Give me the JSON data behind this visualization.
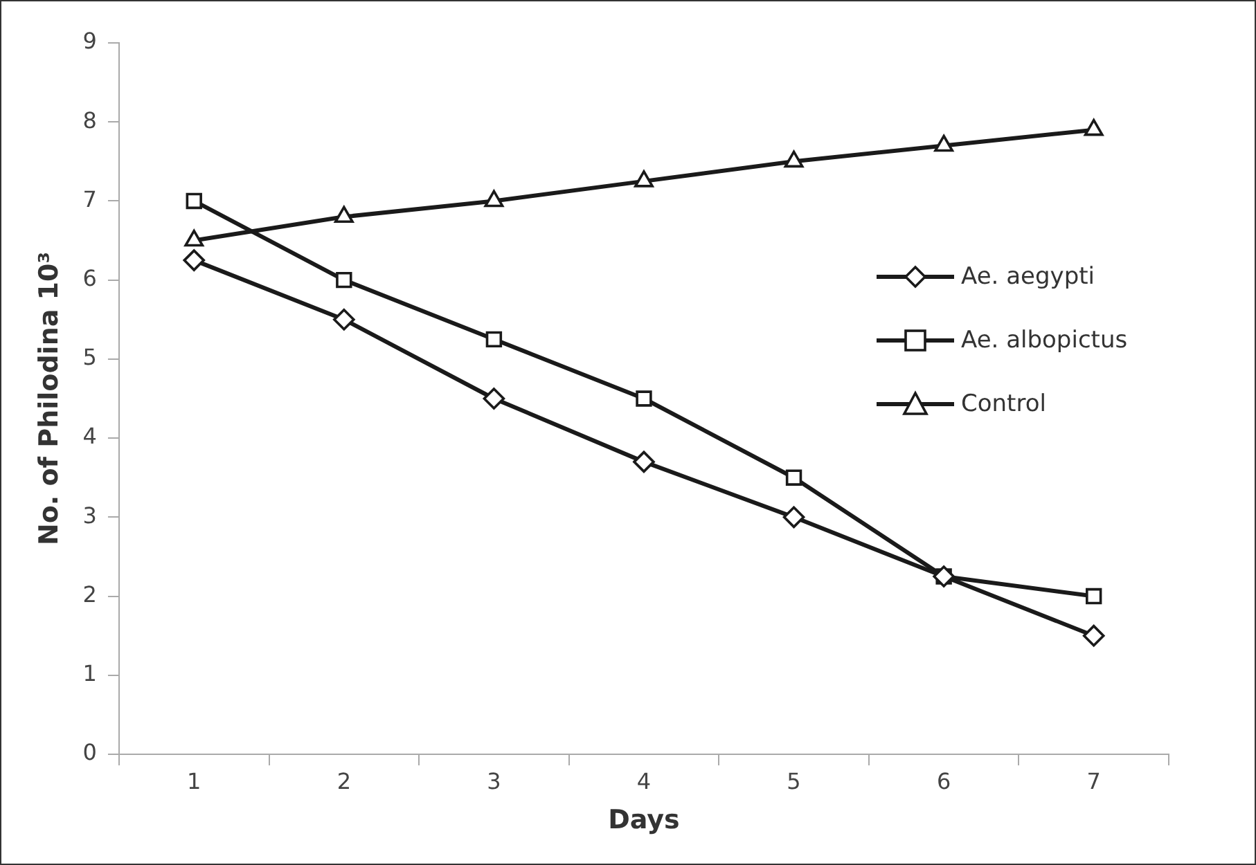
{
  "chart_data": {
    "type": "line",
    "xlabel": "Days",
    "ylabel": "No. of Philodina 10³",
    "categories": [
      "1",
      "2",
      "3",
      "4",
      "5",
      "6",
      "7"
    ],
    "series": [
      {
        "name": "Ae. aegypti",
        "color": "#1a1a1a",
        "marker": "diamond",
        "values": [
          6.25,
          5.5,
          4.5,
          3.7,
          3.0,
          2.25,
          1.5
        ]
      },
      {
        "name": "Ae. albopictus",
        "color": "#1a1a1a",
        "marker": "square",
        "values": [
          7.0,
          6.0,
          5.25,
          4.5,
          3.5,
          2.25,
          2.0
        ]
      },
      {
        "name": "Control",
        "color": "#1a1a1a",
        "marker": "triangle",
        "values": [
          6.5,
          6.8,
          7.0,
          7.25,
          7.5,
          7.7,
          7.9
        ]
      }
    ],
    "ylim": [
      0,
      9
    ],
    "yticks": [
      0,
      1,
      2,
      3,
      4,
      5,
      6,
      7,
      8,
      9
    ],
    "grid": false,
    "legend": "right",
    "line_style": "solid"
  }
}
